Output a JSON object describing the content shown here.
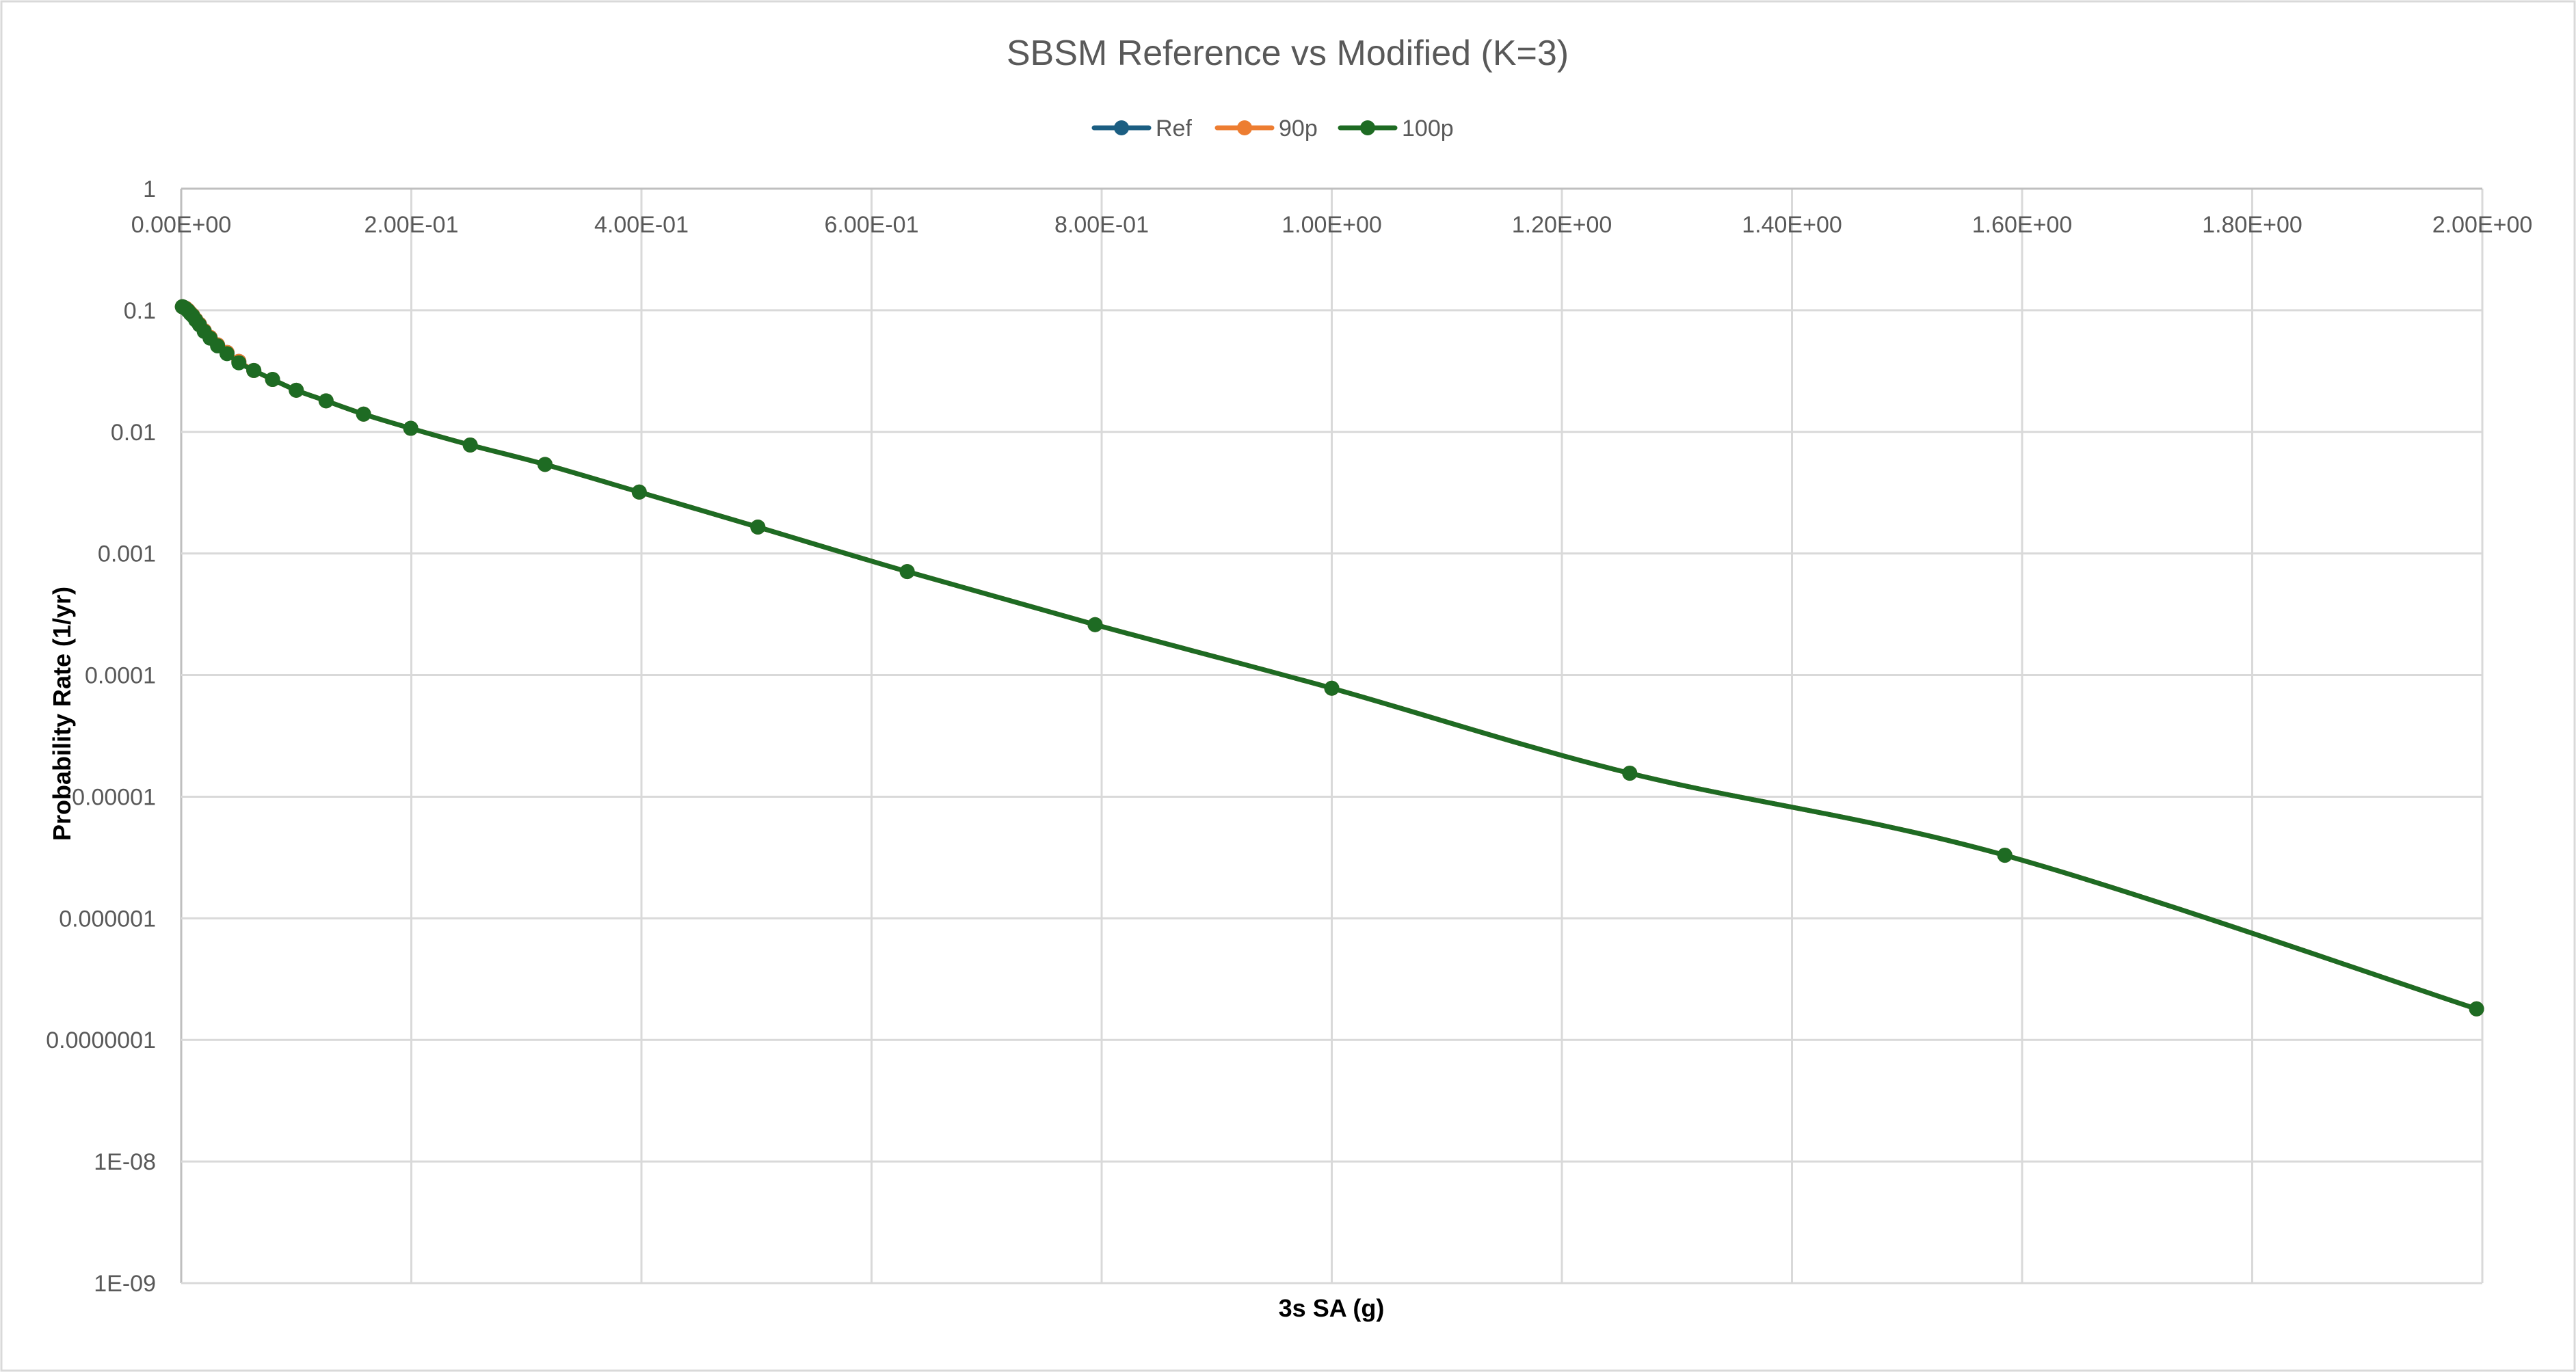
{
  "chart_data": {
    "type": "line",
    "title": "SBSM Reference vs Modified (K=3)",
    "xlabel": "3s SA (g)",
    "ylabel": "Probability Rate (1/yr)",
    "xlim": [
      0,
      2.0
    ],
    "ylim": [
      1e-09,
      1
    ],
    "yscale": "log",
    "grid": true,
    "legend": "top",
    "x_tick_labels": [
      "0.00E+00",
      "2.00E-01",
      "4.00E-01",
      "6.00E-01",
      "8.00E-01",
      "1.00E+00",
      "1.20E+00",
      "1.40E+00",
      "1.60E+00",
      "1.80E+00",
      "2.00E+00"
    ],
    "y_tick_labels": [
      "1",
      "0.1",
      "0.01",
      "0.001",
      "0.0001",
      "0.00001",
      "0.000001",
      "0.0000001",
      "1E-08",
      "1E-09"
    ],
    "x": [
      0.001,
      0.002,
      0.004,
      0.006,
      0.008,
      0.01,
      0.0126,
      0.0158,
      0.02,
      0.0251,
      0.0316,
      0.0398,
      0.0501,
      0.0631,
      0.0794,
      0.1,
      0.1259,
      0.1585,
      0.1995,
      0.2512,
      0.3162,
      0.3981,
      0.5012,
      0.631,
      0.7943,
      1.0,
      1.259,
      1.585,
      1.995
    ],
    "series": [
      {
        "name": "Ref",
        "color": "#1b5e82",
        "values": [
          0.107,
          0.106,
          0.104,
          0.1,
          0.095,
          0.091,
          0.084,
          0.077,
          0.068,
          0.06,
          0.052,
          0.045,
          0.038,
          0.032,
          0.027,
          0.022,
          0.018,
          0.014,
          0.0107,
          0.0078,
          0.0054,
          0.0032,
          0.00165,
          0.00071,
          0.00026,
          7.8e-05,
          1.56e-05,
          3.3e-06,
          1.8e-07
        ]
      },
      {
        "name": "90p",
        "color": "#ed7d31",
        "values": [
          0.107,
          0.106,
          0.104,
          0.1,
          0.095,
          0.091,
          0.084,
          0.077,
          0.068,
          0.06,
          0.052,
          0.045,
          0.038,
          0.032,
          0.027,
          0.022,
          0.018,
          0.014,
          0.0107,
          0.0078,
          0.0054,
          0.0032,
          0.00165,
          0.00071,
          0.00026,
          7.8e-05,
          1.56e-05,
          3.3e-06,
          1.8e-07
        ]
      },
      {
        "name": "100p",
        "color": "#1e6b23",
        "values": [
          0.107,
          0.106,
          0.103,
          0.099,
          0.094,
          0.09,
          0.083,
          0.076,
          0.067,
          0.059,
          0.051,
          0.044,
          0.037,
          0.032,
          0.027,
          0.022,
          0.018,
          0.014,
          0.0107,
          0.0078,
          0.0054,
          0.0032,
          0.00165,
          0.00071,
          0.00026,
          7.8e-05,
          1.56e-05,
          3.3e-06,
          1.8e-07
        ]
      }
    ]
  }
}
